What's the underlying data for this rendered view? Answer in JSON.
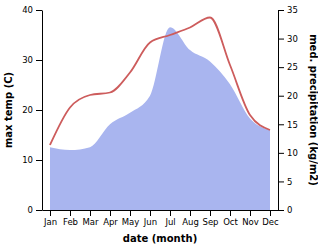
{
  "chart_data": {
    "type": "line",
    "categories": [
      "Jan",
      "Feb",
      "Mar",
      "Apr",
      "May",
      "Jun",
      "Jul",
      "Aug",
      "Sep",
      "Oct",
      "Nov",
      "Dec"
    ],
    "x_label": "date (month)",
    "y_label": "max temp (C)",
    "y2_label": "med. precipitation (kg/m2)",
    "ylim": [
      0,
      40
    ],
    "yticks": [
      0,
      10,
      20,
      30,
      40
    ],
    "y2lim": [
      0,
      35
    ],
    "y2ticks": [
      0,
      5,
      10,
      15,
      20,
      25,
      30,
      35
    ],
    "grid": false,
    "series": [
      {
        "name": "max temp",
        "type": "line",
        "color": "#cd5c5c",
        "values": [
          13,
          20.5,
          23,
          23.5,
          27.5,
          33.5,
          35,
          36.5,
          38.5,
          29,
          19,
          16
        ]
      },
      {
        "name": "med. precipitation",
        "type": "area",
        "axis": "y2",
        "color": "#a9b5ef",
        "values": [
          11,
          10.5,
          11,
          15,
          17,
          20,
          32,
          28,
          26,
          22,
          16,
          14
        ]
      }
    ]
  }
}
